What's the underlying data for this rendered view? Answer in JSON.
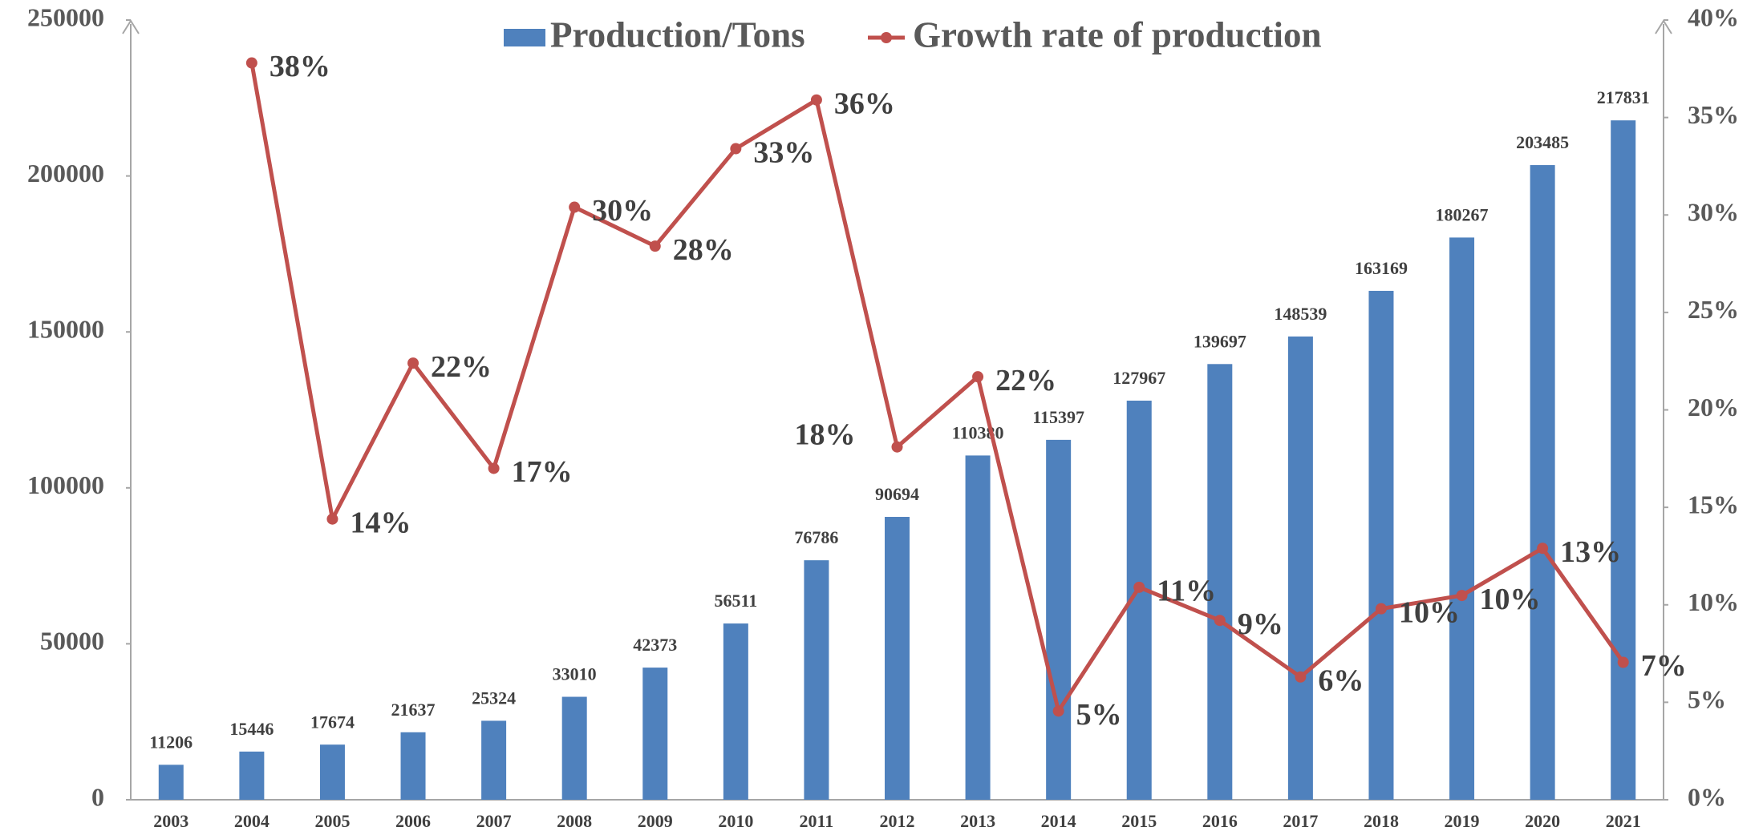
{
  "chart_data": {
    "type": "bar_line",
    "categories": [
      "2003",
      "2004",
      "2005",
      "2006",
      "2007",
      "2008",
      "2009",
      "2010",
      "2011",
      "2012",
      "2013",
      "2014",
      "2015",
      "2016",
      "2017",
      "2018",
      "2019",
      "2020",
      "2021"
    ],
    "series": [
      {
        "name": "Production/Tons",
        "color": "#4f81bd",
        "type": "bar",
        "values": [
          11206,
          15446,
          17674,
          21637,
          25324,
          33010,
          42373,
          56511,
          76786,
          90694,
          110380,
          115397,
          127967,
          139697,
          148539,
          163169,
          180267,
          203485,
          217831
        ]
      },
      {
        "name": "Growth rate of production",
        "color": "#c0504d",
        "type": "line",
        "axis": "y2",
        "values": [
          null,
          37.8,
          14.4,
          22.4,
          17.0,
          30.4,
          28.4,
          33.4,
          35.9,
          18.1,
          21.7,
          4.55,
          10.9,
          9.2,
          6.3,
          9.8,
          10.48,
          12.9,
          7.05
        ],
        "value_labels": [
          null,
          "38%",
          "14%",
          "22%",
          "17%",
          "30%",
          "28%",
          "33%",
          "36%",
          "18%",
          "22%",
          "5%",
          "11%",
          "9%",
          "6%",
          "10%",
          "10%",
          "13%",
          "7%"
        ]
      }
    ],
    "ylim": [
      0,
      250000
    ],
    "yticks": [
      0,
      50000,
      100000,
      150000,
      200000,
      250000
    ],
    "y2lim": [
      0,
      40
    ],
    "y2ticks": [
      {
        "value": 0,
        "label": "0%"
      },
      {
        "value": 5,
        "label": "5%"
      },
      {
        "value": 10,
        "label": "10%"
      },
      {
        "value": 15,
        "label": "15%"
      },
      {
        "value": 20,
        "label": "20%"
      },
      {
        "value": 25,
        "label": "25%"
      },
      {
        "value": 30,
        "label": "30%"
      },
      {
        "value": 35,
        "label": "35%"
      },
      {
        "value": 40,
        "label": "40%"
      }
    ],
    "legend": "top"
  }
}
